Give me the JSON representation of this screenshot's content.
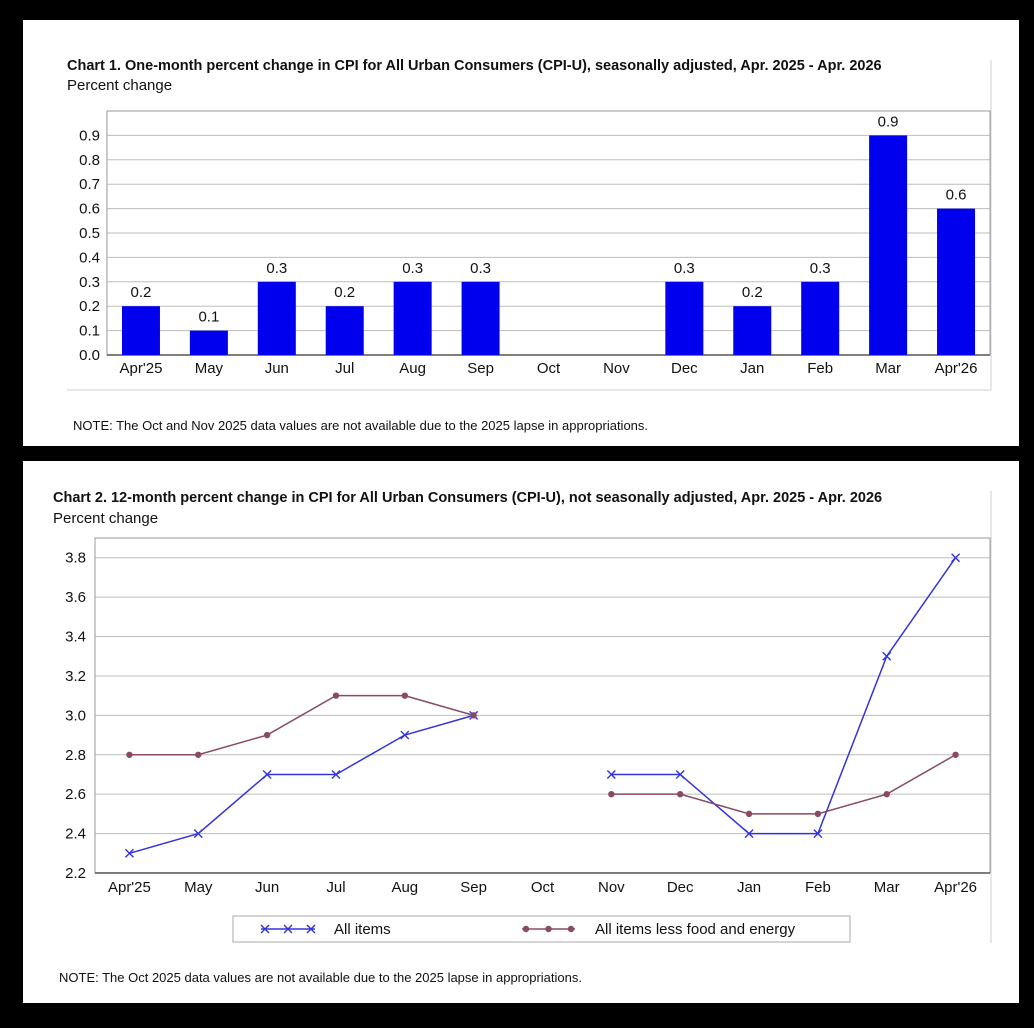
{
  "chart1": {
    "title": "Chart 1. One-month percent change in CPI for All Urban Consumers (CPI-U), seasonally adjusted, Apr. 2025 - Apr. 2026",
    "ylabel": "Percent change",
    "note": "NOTE: The Oct and Nov 2025 data values are not available due to the 2025 lapse in appropriations.",
    "colors": {
      "bar": "#0000ee",
      "grid": "#bdbdbd",
      "axis": "#555555"
    }
  },
  "chart2": {
    "title": "Chart 2. 12-month percent change in CPI for All Urban Consumers (CPI-U), not seasonally adjusted, Apr. 2025 - Apr. 2026",
    "ylabel": "Percent change",
    "note": "NOTE: The Oct 2025 data values are not available due to the 2025 lapse in appropriations.",
    "colors": {
      "all_items": "#3333dd",
      "core": "#8a4a63",
      "grid": "#bdbdbd",
      "axis": "#555555"
    }
  },
  "chart_data": [
    {
      "type": "bar",
      "title": "Chart 1. One-month percent change in CPI for All Urban Consumers (CPI-U), seasonally adjusted, Apr. 2025 - Apr. 2026",
      "ylabel": "Percent change",
      "xlabel": "",
      "categories": [
        "Apr'25",
        "May",
        "Jun",
        "Jul",
        "Aug",
        "Sep",
        "Oct",
        "Nov",
        "Dec",
        "Jan",
        "Feb",
        "Mar",
        "Apr'26"
      ],
      "values": [
        0.2,
        0.1,
        0.3,
        0.2,
        0.3,
        0.3,
        null,
        null,
        0.3,
        0.2,
        0.3,
        0.9,
        0.6
      ],
      "data_labels": [
        "0.2",
        "0.1",
        "0.3",
        "0.2",
        "0.3",
        "0.3",
        "",
        "",
        "0.3",
        "0.2",
        "0.3",
        "0.9",
        "0.6"
      ],
      "ylim": [
        0,
        1.0
      ],
      "yticks": [
        0.0,
        0.1,
        0.2,
        0.3,
        0.4,
        0.5,
        0.6,
        0.7,
        0.8,
        0.9
      ],
      "ytick_labels": [
        "0.0",
        "0.1",
        "0.2",
        "0.3",
        "0.4",
        "0.5",
        "0.6",
        "0.7",
        "0.8",
        "0.9"
      ],
      "grid": true
    },
    {
      "type": "line",
      "title": "Chart 2. 12-month percent change in CPI for All Urban Consumers (CPI-U), not seasonally adjusted, Apr. 2025 - Apr. 2026",
      "ylabel": "Percent change",
      "xlabel": "",
      "categories": [
        "Apr'25",
        "May",
        "Jun",
        "Jul",
        "Aug",
        "Sep",
        "Oct",
        "Nov",
        "Dec",
        "Jan",
        "Feb",
        "Mar",
        "Apr'26"
      ],
      "series": [
        {
          "name": "All items",
          "marker": "x",
          "values": [
            2.3,
            2.4,
            2.7,
            2.7,
            2.9,
            3.0,
            null,
            2.7,
            2.7,
            2.4,
            2.4,
            3.3,
            3.8
          ]
        },
        {
          "name": "All items less food and energy",
          "marker": "dot",
          "values": [
            2.8,
            2.8,
            2.9,
            3.1,
            3.1,
            3.0,
            null,
            2.6,
            2.6,
            2.5,
            2.5,
            2.6,
            2.8
          ]
        }
      ],
      "ylim": [
        2.2,
        3.9
      ],
      "yticks": [
        2.2,
        2.4,
        2.6,
        2.8,
        3.0,
        3.2,
        3.4,
        3.6,
        3.8
      ],
      "ytick_labels": [
        "2.2",
        "2.4",
        "2.6",
        "2.8",
        "3.0",
        "3.2",
        "3.4",
        "3.6",
        "3.8"
      ],
      "legend_position": "bottom",
      "grid": true
    }
  ]
}
